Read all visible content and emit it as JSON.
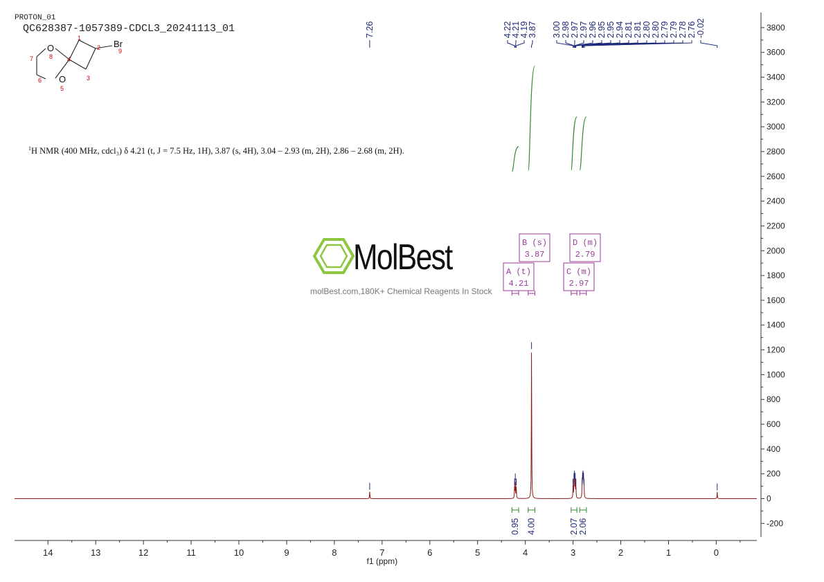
{
  "experiment": "PROTON_01",
  "sample_title": "QC628387-1057389-CDCL3_20241113_01",
  "nmr_description": {
    "sup": "1",
    "text": "H NMR (400 MHz, cdcl₃) δ 4.21 (t, J = 7.5 Hz, 1H), 3.87 (s, 4H), 3.04 – 2.93 (m, 2H), 2.86 – 2.68 (m, 2H)."
  },
  "watermark": {
    "name": "MolBest",
    "tagline": "molBest.com,180K+ Chemical Reagents In Stock",
    "color": "#8dc63f"
  },
  "structure": {
    "atoms": [
      "O",
      "8",
      "1",
      "2",
      "Br",
      "9",
      "4",
      "7",
      "3",
      "6",
      "O",
      "5"
    ]
  },
  "colors": {
    "spectrum": "#8b1a1a",
    "peak_labels": "#1f2a7a",
    "integral": "#2e8b2e",
    "multiplet_box": "#9b3b9b",
    "axis": "#333333"
  },
  "chart_data": {
    "type": "line",
    "xlabel": "f1 (ppm)",
    "x_ticks": [
      "14",
      "13",
      "12",
      "11",
      "10",
      "9",
      "8",
      "7",
      "6",
      "5",
      "4",
      "3",
      "2",
      "1",
      "0"
    ],
    "y_ticks": [
      "-200",
      "0",
      "200",
      "400",
      "600",
      "800",
      "1000",
      "1200",
      "1400",
      "1600",
      "1800",
      "2000",
      "2200",
      "2400",
      "2600",
      "2800",
      "3000",
      "3200",
      "3400",
      "3600",
      "3800"
    ],
    "xlim": [
      14.7,
      -0.85
    ],
    "ylim": [
      -310,
      3900
    ],
    "peak_labels": [
      "7.26",
      "4.22",
      "4.21",
      "4.19",
      "3.87",
      "3.00",
      "2.98",
      "2.97",
      "2.97",
      "2.96",
      "2.95",
      "2.95",
      "2.94",
      "2.81",
      "2.81",
      "2.80",
      "2.80",
      "2.79",
      "2.79",
      "2.78",
      "2.76",
      "-0.02"
    ],
    "peaks": [
      {
        "ppm": 7.26,
        "height": 60
      },
      {
        "ppm": 4.225,
        "height": 95
      },
      {
        "ppm": 4.21,
        "height": 135
      },
      {
        "ppm": 4.19,
        "height": 95
      },
      {
        "ppm": 3.87,
        "height": 1195
      },
      {
        "ppm": 3.0,
        "height": 95
      },
      {
        "ppm": 2.98,
        "height": 140
      },
      {
        "ppm": 2.97,
        "height": 160
      },
      {
        "ppm": 2.955,
        "height": 140
      },
      {
        "ppm": 2.94,
        "height": 95
      },
      {
        "ppm": 2.81,
        "height": 100
      },
      {
        "ppm": 2.8,
        "height": 145
      },
      {
        "ppm": 2.79,
        "height": 160
      },
      {
        "ppm": 2.78,
        "height": 140
      },
      {
        "ppm": 2.77,
        "height": 90
      },
      {
        "ppm": -0.02,
        "height": 55
      }
    ],
    "integrals": [
      {
        "from": 4.28,
        "to": 4.14,
        "value": "0.95",
        "y_start": 2640,
        "y_end": 2840
      },
      {
        "from": 3.94,
        "to": 3.8,
        "value": "4.00",
        "y_start": 2645,
        "y_end": 3490
      },
      {
        "from": 3.04,
        "to": 2.92,
        "value": "2.07",
        "y_start": 2650,
        "y_end": 3080
      },
      {
        "from": 2.86,
        "to": 2.72,
        "value": "2.06",
        "y_start": 2650,
        "y_end": 3080
      }
    ],
    "multiplets": [
      {
        "label": "A (t)",
        "shift": "4.21",
        "from": 4.28,
        "to": 4.14
      },
      {
        "label": "B (s)",
        "shift": "3.87",
        "from": 3.94,
        "to": 3.8
      },
      {
        "label": "C (m)",
        "shift": "2.97",
        "from": 3.04,
        "to": 2.92
      },
      {
        "label": "D (m)",
        "shift": "2.79",
        "from": 2.86,
        "to": 2.72
      }
    ]
  }
}
